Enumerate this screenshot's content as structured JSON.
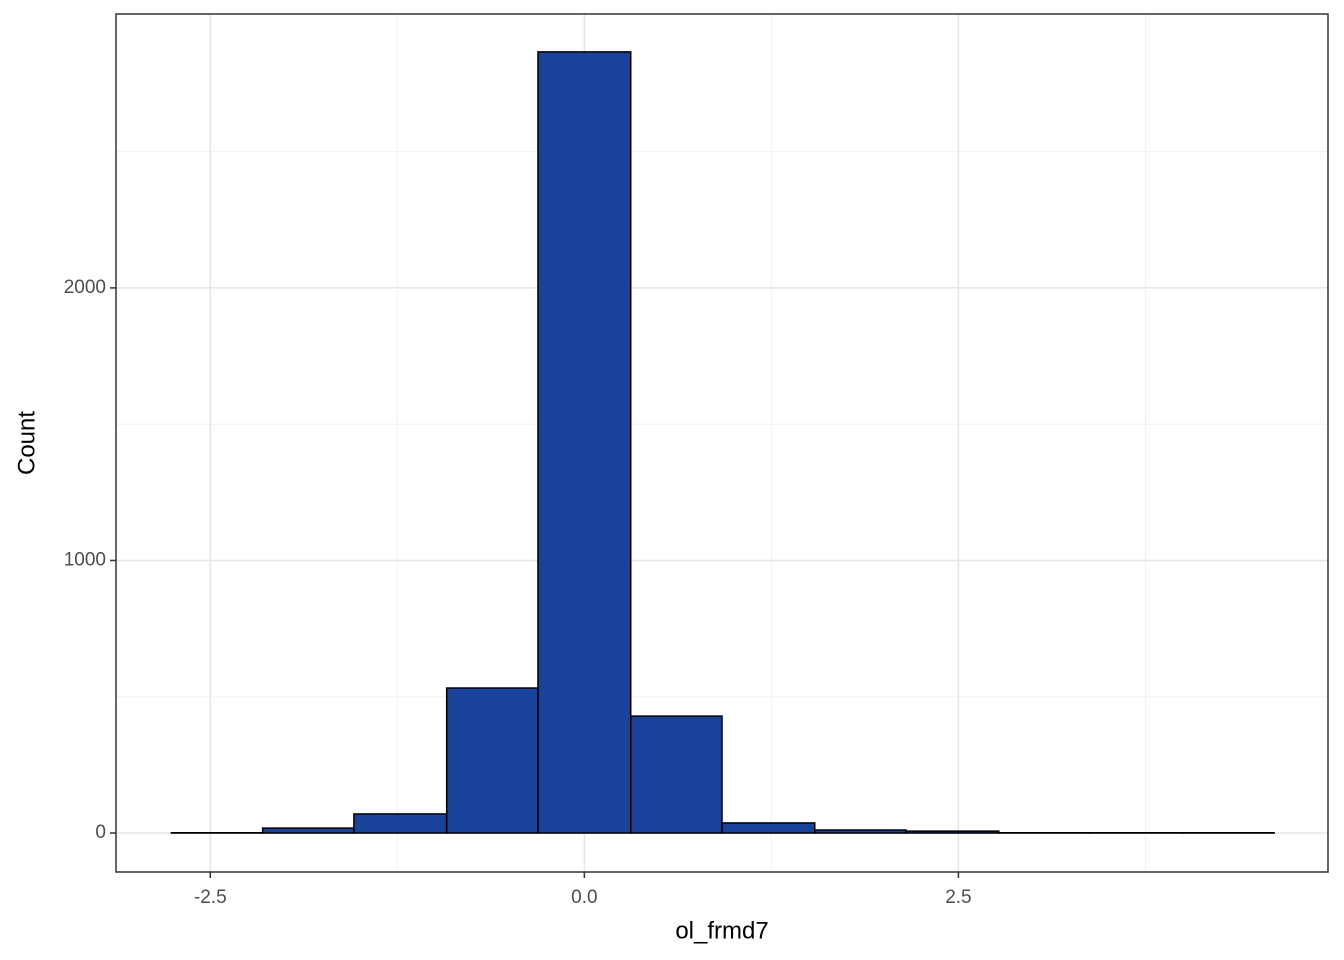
{
  "chart_data": {
    "type": "histogram",
    "x_label": "ol_frmd7",
    "y_label": "Count",
    "bins": [
      -2.76,
      -2.15,
      -1.54,
      -0.92,
      -0.31,
      0.31,
      0.92,
      1.54,
      2.15,
      2.77,
      3.38,
      4.0,
      4.61
    ],
    "values": [
      1,
      18,
      70,
      532,
      2866,
      429,
      37,
      11,
      7,
      1,
      1,
      1
    ],
    "color": "#19439a",
    "edge_color": "#000000",
    "xlim": [
      -3.13,
      4.97
    ],
    "ylim": [
      -143,
      3005
    ],
    "xticks": [
      {
        "value": -2.5,
        "label": "-2.5"
      },
      {
        "value": 0,
        "label": "0.0"
      },
      {
        "value": 2.5,
        "label": "2.5"
      }
    ],
    "yticks": [
      0,
      1000,
      2000
    ],
    "x_minor_grid": [
      -1.25,
      1.25,
      3.75
    ],
    "y_minor_grid": [
      500,
      1500,
      2500
    ],
    "grid": true
  }
}
